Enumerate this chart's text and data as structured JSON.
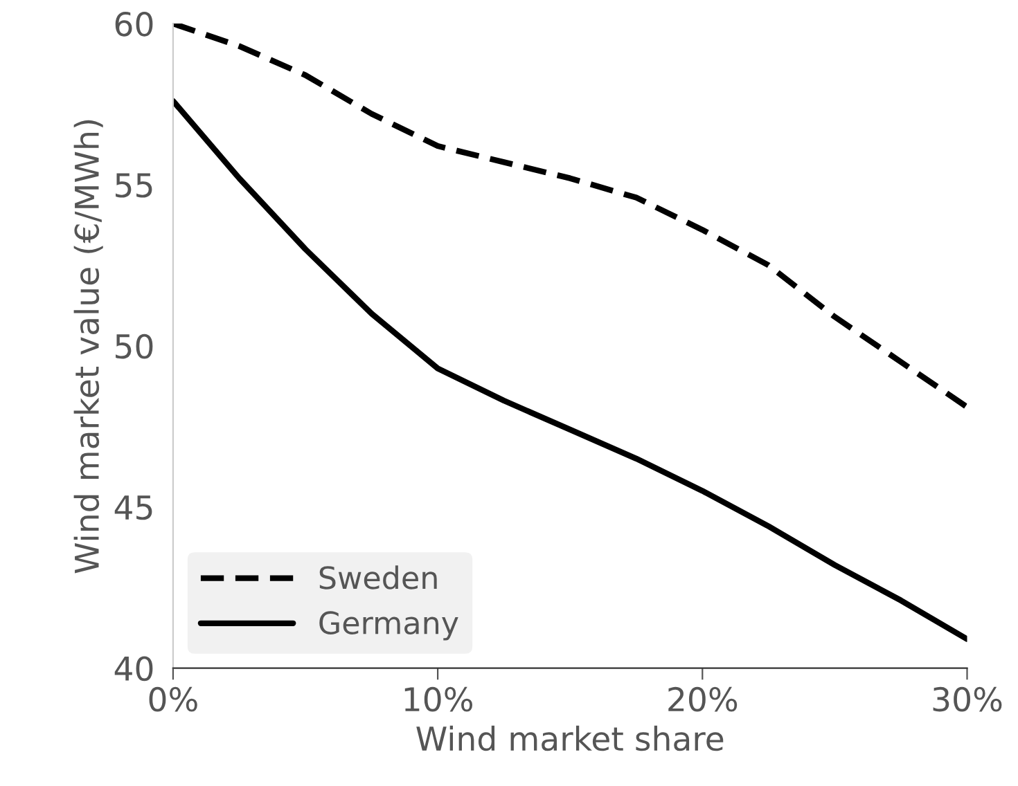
{
  "chart_data": {
    "type": "line",
    "xlabel": "Wind market share",
    "ylabel": "Wind market value (€/MWh)",
    "x": [
      0,
      2.5,
      5,
      7.5,
      10,
      12.5,
      15,
      17.5,
      20,
      22.5,
      25,
      27.5,
      30
    ],
    "series": [
      {
        "name": "Sweden",
        "color": "#000000",
        "line_style": "dashed",
        "values": [
          60.0,
          59.3,
          58.4,
          57.2,
          56.2,
          55.7,
          55.2,
          54.6,
          53.6,
          52.5,
          50.9,
          49.5,
          48.1
        ]
      },
      {
        "name": "Germany",
        "color": "#000000",
        "line_style": "solid",
        "values": [
          57.6,
          55.2,
          53.0,
          51.0,
          49.3,
          48.3,
          47.4,
          46.5,
          45.5,
          44.4,
          43.2,
          42.1,
          40.9
        ]
      }
    ],
    "xlim": [
      0,
      30
    ],
    "xticks": [
      {
        "value": 0,
        "label": "0%"
      },
      {
        "value": 10,
        "label": "10%"
      },
      {
        "value": 20,
        "label": "20%"
      },
      {
        "value": 30,
        "label": "30%"
      }
    ],
    "ylim": [
      40,
      60
    ],
    "yticks": [
      40,
      45,
      50,
      55,
      60
    ],
    "legend": "bottom left",
    "grid": false
  }
}
